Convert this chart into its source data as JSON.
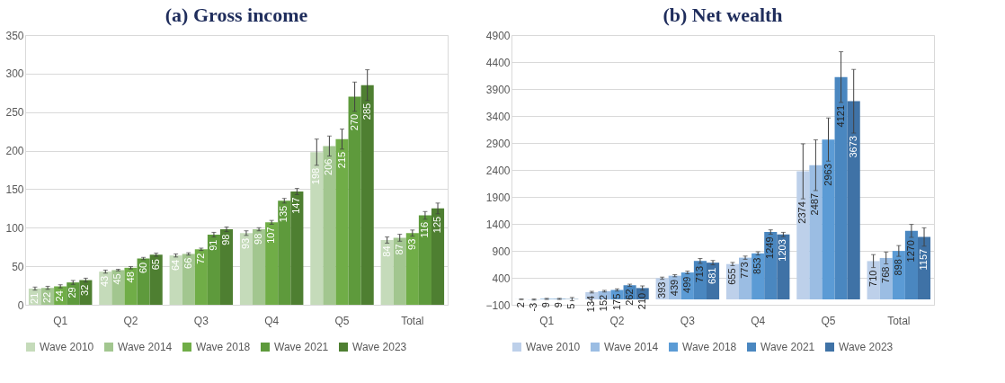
{
  "chart_data": [
    {
      "type": "bar",
      "title": "(a)  Gross income",
      "categories": [
        "Q1",
        "Q2",
        "Q3",
        "Q4",
        "Q5",
        "Total"
      ],
      "ylim": [
        0,
        350
      ],
      "yticks": [
        0,
        50,
        100,
        150,
        200,
        250,
        300,
        350
      ],
      "grid": "y",
      "legend": "bottom",
      "data_labels": true,
      "series": [
        {
          "name": "Wave 2010",
          "color": "#c5dbba",
          "values": [
            21,
            43,
            64,
            93,
            198,
            84
          ],
          "errors": [
            2,
            2,
            2,
            3,
            17,
            4
          ]
        },
        {
          "name": "Wave 2014",
          "color": "#a2c68f",
          "values": [
            22,
            45,
            66,
            98,
            206,
            87
          ],
          "errors": [
            2,
            1,
            1.5,
            2,
            13,
            4.5
          ]
        },
        {
          "name": "Wave 2018",
          "color": "#70ad47",
          "values": [
            24,
            48,
            72,
            107,
            215,
            93
          ],
          "errors": [
            2,
            1.5,
            1.5,
            2.5,
            13,
            4
          ]
        },
        {
          "name": "Wave 2021",
          "color": "#5e9a3c",
          "values": [
            29,
            60,
            91,
            135,
            270,
            116
          ],
          "errors": [
            2.5,
            1.5,
            3,
            3,
            19,
            5
          ]
        },
        {
          "name": "Wave 2023",
          "color": "#4e7f31",
          "values": [
            32,
            65,
            98,
            147,
            285,
            125
          ],
          "errors": [
            2.5,
            2,
            3,
            4,
            20,
            7
          ]
        }
      ]
    },
    {
      "type": "bar",
      "title": "(b) Net wealth",
      "categories": [
        "Q1",
        "Q2",
        "Q3",
        "Q4",
        "Q5",
        "Total"
      ],
      "ylim": [
        -100,
        4900
      ],
      "yticks": [
        -100,
        400,
        900,
        1400,
        1900,
        2400,
        2900,
        3400,
        3900,
        4400,
        4900
      ],
      "grid": "y",
      "legend": "bottom",
      "data_labels": true,
      "series": [
        {
          "name": "Wave 2010",
          "color": "#bdd0ea",
          "values": [
            2,
            134,
            393,
            655,
            2374,
            710
          ],
          "errors": [
            5,
            15,
            20,
            30,
            510,
            120
          ]
        },
        {
          "name": "Wave 2014",
          "color": "#9bbde3",
          "values": [
            -3,
            152,
            439,
            773,
            2487,
            768
          ],
          "errors": [
            10,
            15,
            20,
            30,
            470,
            110
          ]
        },
        {
          "name": "Wave 2018",
          "color": "#5b9bd5",
          "values": [
            9,
            175,
            499,
            853,
            2963,
            898
          ],
          "errors": [
            10,
            20,
            25,
            30,
            400,
            100
          ]
        },
        {
          "name": "Wave 2021",
          "color": "#4a87c0",
          "values": [
            9,
            262,
            713,
            1249,
            4121,
            1270
          ],
          "errors": [
            10,
            20,
            45,
            40,
            470,
            120
          ]
        },
        {
          "name": "Wave 2023",
          "color": "#3f72a6",
          "values": [
            5,
            210,
            681,
            1203,
            3673,
            1157
          ],
          "errors": [
            30,
            40,
            40,
            40,
            590,
            170
          ]
        }
      ]
    }
  ]
}
